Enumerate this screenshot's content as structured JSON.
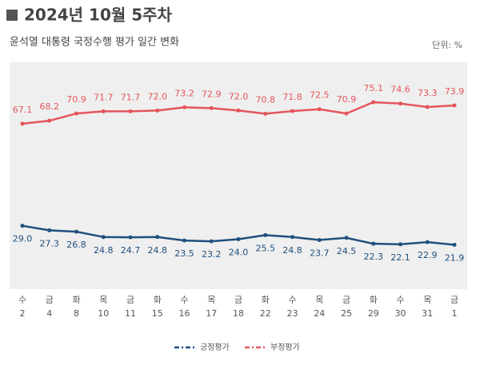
{
  "chart_data": {
    "type": "line",
    "title": "2024년 10월 5주차",
    "subtitle": "윤석열 대통령 국정수행 평가 일간 변화",
    "unit_note": "단위: %",
    "categories": [
      [
        "수",
        "2"
      ],
      [
        "금",
        "4"
      ],
      [
        "화",
        "8"
      ],
      [
        "목",
        "10"
      ],
      [
        "금",
        "11"
      ],
      [
        "화",
        "15"
      ],
      [
        "수",
        "16"
      ],
      [
        "목",
        "17"
      ],
      [
        "금",
        "18"
      ],
      [
        "화",
        "22"
      ],
      [
        "수",
        "23"
      ],
      [
        "목",
        "24"
      ],
      [
        "금",
        "25"
      ],
      [
        "화",
        "29"
      ],
      [
        "수",
        "30"
      ],
      [
        "목",
        "31"
      ],
      [
        "금",
        "1"
      ]
    ],
    "ylim": [
      0,
      90
    ],
    "series": [
      {
        "name": "긍정평가",
        "color": "#1f4f7d",
        "values": [
          29.0,
          27.3,
          26.8,
          24.8,
          24.7,
          24.8,
          23.5,
          23.2,
          24.0,
          25.5,
          24.8,
          23.7,
          24.5,
          22.3,
          22.1,
          22.9,
          21.9
        ],
        "value_labels": [
          "29.0",
          "27.3",
          "26.8",
          "24.8",
          "24.7",
          "24.8",
          "23.5",
          "23.2",
          "24.0",
          "25.5",
          "24.8",
          "23.7",
          "24.5",
          "22.3",
          "22.1",
          "22.9",
          "21.9"
        ]
      },
      {
        "name": "부정평가",
        "color": "#e5555b",
        "values": [
          67.1,
          68.2,
          70.9,
          71.7,
          71.7,
          72.0,
          73.2,
          72.9,
          72.0,
          70.8,
          71.8,
          72.5,
          70.9,
          75.1,
          74.6,
          73.3,
          73.9
        ],
        "value_labels": [
          "67.1",
          "68.2",
          "70.9",
          "71.7",
          "71.7",
          "72.0",
          "73.2",
          "72.9",
          "72.0",
          "70.8",
          "71.8",
          "72.5",
          "70.9",
          "75.1",
          "74.6",
          "73.3",
          "73.9"
        ]
      }
    ]
  }
}
